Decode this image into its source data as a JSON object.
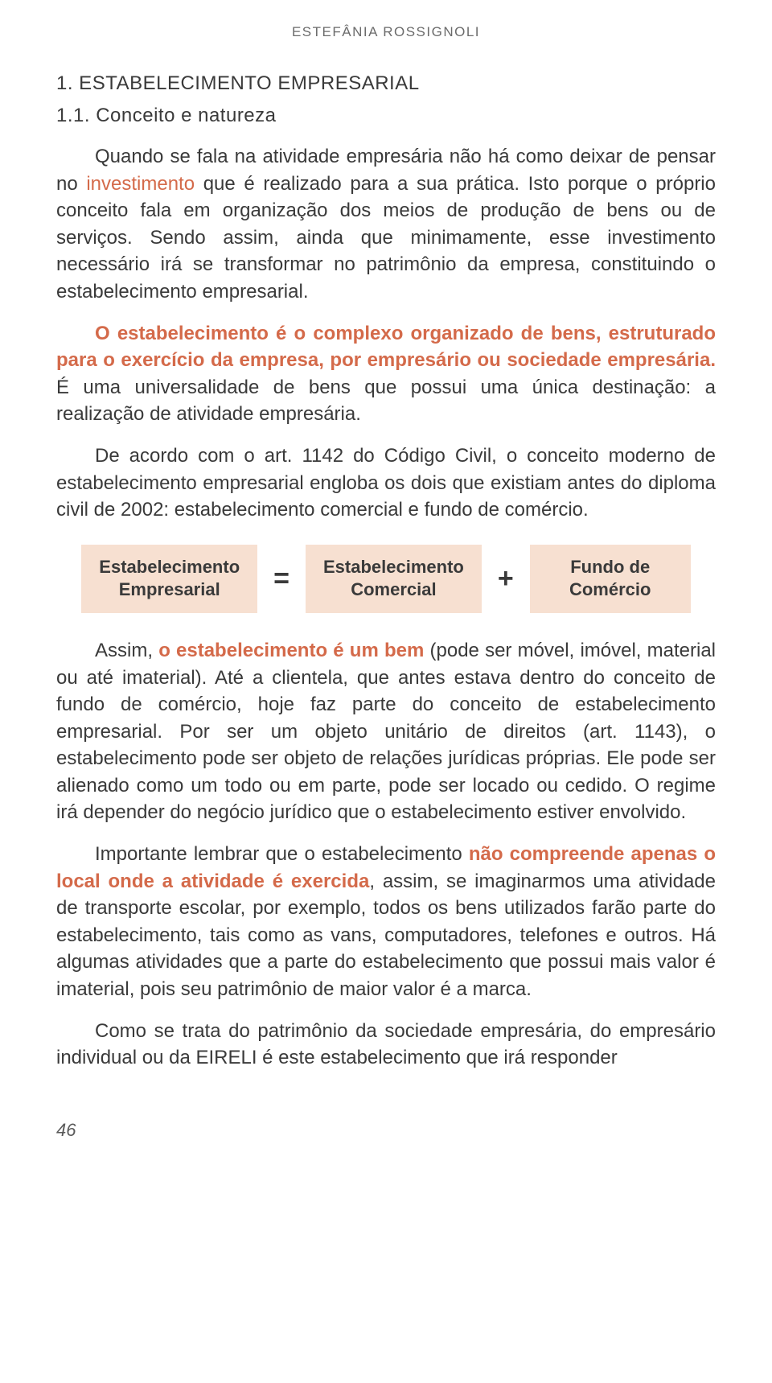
{
  "author": "ESTEFÂNIA ROSSIGNOLI",
  "heading1": "1. ESTABELECIMENTO EMPRESARIAL",
  "heading2": "1.1. Conceito e natureza",
  "p1_a": "Quando se fala na atividade empresária não há como deixar de pensar no ",
  "p1_accent": "investimento",
  "p1_b": " que é realizado para a sua prática. Isto porque o próprio conceito fala em organização dos meios de produção de bens ou de serviços. Sendo assim, ainda que minimamente, esse investimento necessário irá se transformar no patrimônio da empresa, constituindo o estabelecimento empresarial.",
  "p2_accent": "O estabelecimento é o complexo organizado de bens, estruturado para o exercício da empresa, por empresário ou sociedade empresária.",
  "p2_b": " É uma universalidade de bens que possui uma única destinação: a realização de atividade empresária.",
  "p3": "De acordo com o art. 1142 do Código Civil, o conceito moderno de estabelecimento empresarial engloba os dois que existiam antes do diploma civil de 2002: estabelecimento comercial e fundo de comércio.",
  "equation": {
    "box1_l1": "Estabelecimento",
    "box1_l2": "Empresarial",
    "op1": "=",
    "box2_l1": "Estabelecimento",
    "box2_l2": "Comercial",
    "op2": "+",
    "box3_l1": "Fundo de",
    "box3_l2": "Comércio",
    "box_bg": "#f7e0d1"
  },
  "p4_a": "Assim, ",
  "p4_accent": "o estabelecimento é um bem",
  "p4_b": " (pode ser móvel, imóvel, material ou até imaterial). Até a clientela, que antes estava dentro do conceito de fundo de comércio, hoje faz parte do conceito de estabelecimento empresarial. Por ser um objeto unitário de direitos (art. 1143), o estabelecimento pode ser objeto de relações jurídicas próprias. Ele pode ser alienado como um todo ou em parte, pode ser locado ou cedido. O regime irá depender do negócio jurídico que o estabelecimento estiver envolvido.",
  "p5_a": "Importante lembrar que o estabelecimento ",
  "p5_accent": "não compreende apenas o local onde a atividade é exercida",
  "p5_b": ", assim, se imaginarmos uma atividade de transporte escolar, por exemplo, todos os bens utilizados farão parte do estabelecimento, tais como as vans, computadores, telefones e outros. Há algumas atividades que a parte do estabelecimento que possui mais valor é imaterial, pois seu patrimônio de maior valor é a marca.",
  "p6": "Como se trata do patrimônio da sociedade empresária, do empresário individual ou da EIRELI é este estabelecimento que irá responder",
  "page_number": "46"
}
